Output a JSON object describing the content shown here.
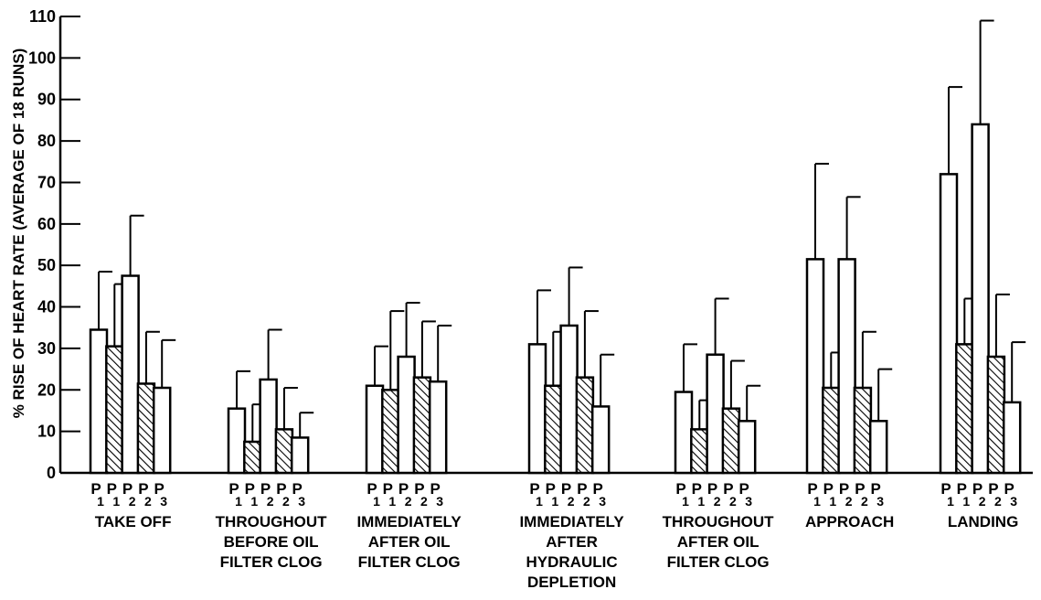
{
  "chart_data": {
    "type": "bar",
    "ylabel": "% RISE OF HEART RATE (AVERAGE OF 18 RUNS)",
    "ylim": [
      0,
      110
    ],
    "yticks": [
      0,
      10,
      20,
      30,
      40,
      50,
      60,
      70,
      80,
      90,
      100,
      110
    ],
    "grid": false,
    "bar_labels": [
      {
        "main": "P",
        "sub": "1"
      },
      {
        "main": "P",
        "sub": "1"
      },
      {
        "main": "P",
        "sub": "2"
      },
      {
        "main": "P",
        "sub": "2"
      },
      {
        "main": "P",
        "sub": "3"
      }
    ],
    "bar_fills": [
      "plain",
      "hatched",
      "plain",
      "hatched",
      "plain"
    ],
    "categories": [
      {
        "lines": [
          "TAKE OFF"
        ],
        "values": [
          34.5,
          30.5,
          47.5,
          21.5,
          20.5
        ],
        "errors": [
          48.5,
          45.5,
          62,
          34,
          32
        ]
      },
      {
        "lines": [
          "THROUGHOUT",
          "BEFORE OIL",
          "FILTER CLOG"
        ],
        "values": [
          15.5,
          7.5,
          22.5,
          10.5,
          8.5
        ],
        "errors": [
          24.5,
          16.5,
          34.5,
          20.5,
          14.5
        ]
      },
      {
        "lines": [
          "IMMEDIATELY",
          "AFTER OIL",
          "FILTER CLOG"
        ],
        "values": [
          21,
          20,
          28,
          23,
          22
        ],
        "errors": [
          30.5,
          39,
          41,
          36.5,
          35.5
        ]
      },
      {
        "lines": [
          "IMMEDIATELY",
          "AFTER",
          "HYDRAULIC",
          "DEPLETION"
        ],
        "values": [
          31,
          21,
          35.5,
          23,
          16
        ],
        "errors": [
          44,
          34,
          49.5,
          39,
          28.5
        ]
      },
      {
        "lines": [
          "THROUGHOUT",
          "AFTER OIL",
          "FILTER CLOG"
        ],
        "values": [
          19.5,
          10.5,
          28.5,
          15.5,
          12.5
        ],
        "errors": [
          31,
          17.5,
          42,
          27,
          21
        ]
      },
      {
        "lines": [
          "APPROACH"
        ],
        "values": [
          51.5,
          20.5,
          51.5,
          20.5,
          12.5
        ],
        "errors": [
          74.5,
          29,
          66.5,
          34,
          25
        ]
      },
      {
        "lines": [
          "LANDING"
        ],
        "values": [
          72,
          31,
          84,
          28,
          17
        ],
        "errors": [
          93,
          42,
          109,
          43,
          31.5
        ]
      }
    ]
  }
}
